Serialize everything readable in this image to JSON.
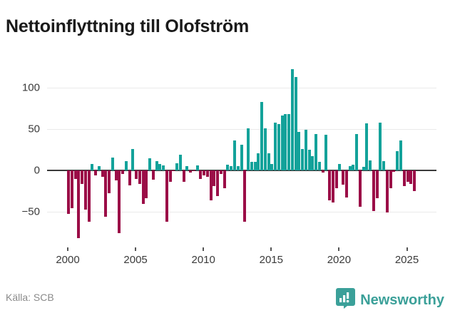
{
  "title": "Nettoinflyttning till Olofström",
  "footer": {
    "source_label": "Källa: SCB",
    "brand": "Newsworthy"
  },
  "colors": {
    "positive": "#13a29a",
    "negative": "#9b0d47",
    "zero_line": "#3a3a3a",
    "grid": "#eaeaea",
    "axis_text": "#3a3a3a",
    "brand_teal": "#3ba099",
    "title_text": "#1a1a1a",
    "source_text": "#8a8a8a"
  },
  "chart_data": {
    "type": "bar",
    "title": "Nettoinflyttning till Olofström",
    "xlabel": "",
    "ylabel": "",
    "grid": true,
    "legend": "none",
    "period": "quarterly",
    "x_tick_years": [
      2000,
      2005,
      2010,
      2015,
      2020,
      2025
    ],
    "y_ticks": [
      100,
      50,
      0,
      -50
    ],
    "ylim": [
      -95,
      135
    ],
    "series": [
      {
        "year": 2000,
        "values": [
          -53,
          -46,
          -10,
          -82
        ]
      },
      {
        "year": 2001,
        "values": [
          -16,
          -48,
          -62,
          8
        ]
      },
      {
        "year": 2002,
        "values": [
          -6,
          5,
          -8,
          -56
        ]
      },
      {
        "year": 2003,
        "values": [
          -28,
          16,
          -12,
          -76
        ]
      },
      {
        "year": 2004,
        "values": [
          -4,
          11,
          -18,
          26
        ]
      },
      {
        "year": 2005,
        "values": [
          -10,
          -16,
          -41,
          -34
        ]
      },
      {
        "year": 2006,
        "values": [
          15,
          -11,
          11,
          8
        ]
      },
      {
        "year": 2007,
        "values": [
          6,
          -62,
          -14,
          -1
        ]
      },
      {
        "year": 2008,
        "values": [
          9,
          19,
          -14,
          5
        ]
      },
      {
        "year": 2009,
        "values": [
          -3,
          -1,
          6,
          -10
        ]
      },
      {
        "year": 2010,
        "values": [
          -6,
          -8,
          -36,
          -19
        ]
      },
      {
        "year": 2011,
        "values": [
          -31,
          -4,
          -22,
          7
        ]
      },
      {
        "year": 2012,
        "values": [
          5,
          36,
          5,
          31
        ]
      },
      {
        "year": 2013,
        "values": [
          -62,
          51,
          10,
          10
        ]
      },
      {
        "year": 2014,
        "values": [
          21,
          83,
          51,
          21
        ]
      },
      {
        "year": 2015,
        "values": [
          8,
          58,
          56,
          67
        ]
      },
      {
        "year": 2016,
        "values": [
          68,
          68,
          123,
          113
        ]
      },
      {
        "year": 2017,
        "values": [
          47,
          26,
          49,
          25
        ]
      },
      {
        "year": 2018,
        "values": [
          17,
          44,
          10,
          -3
        ]
      },
      {
        "year": 2019,
        "values": [
          43,
          -36,
          -39,
          -22
        ]
      },
      {
        "year": 2020,
        "values": [
          8,
          -17,
          -33,
          5
        ]
      },
      {
        "year": 2021,
        "values": [
          7,
          44,
          -44,
          4
        ]
      },
      {
        "year": 2022,
        "values": [
          57,
          12,
          -49,
          -34
        ]
      },
      {
        "year": 2023,
        "values": [
          58,
          11,
          -51,
          -22
        ]
      },
      {
        "year": 2024,
        "values": [
          -2,
          23,
          36,
          -19
        ]
      },
      {
        "year": 2025,
        "values": [
          -14,
          -16,
          -25
        ]
      }
    ]
  }
}
